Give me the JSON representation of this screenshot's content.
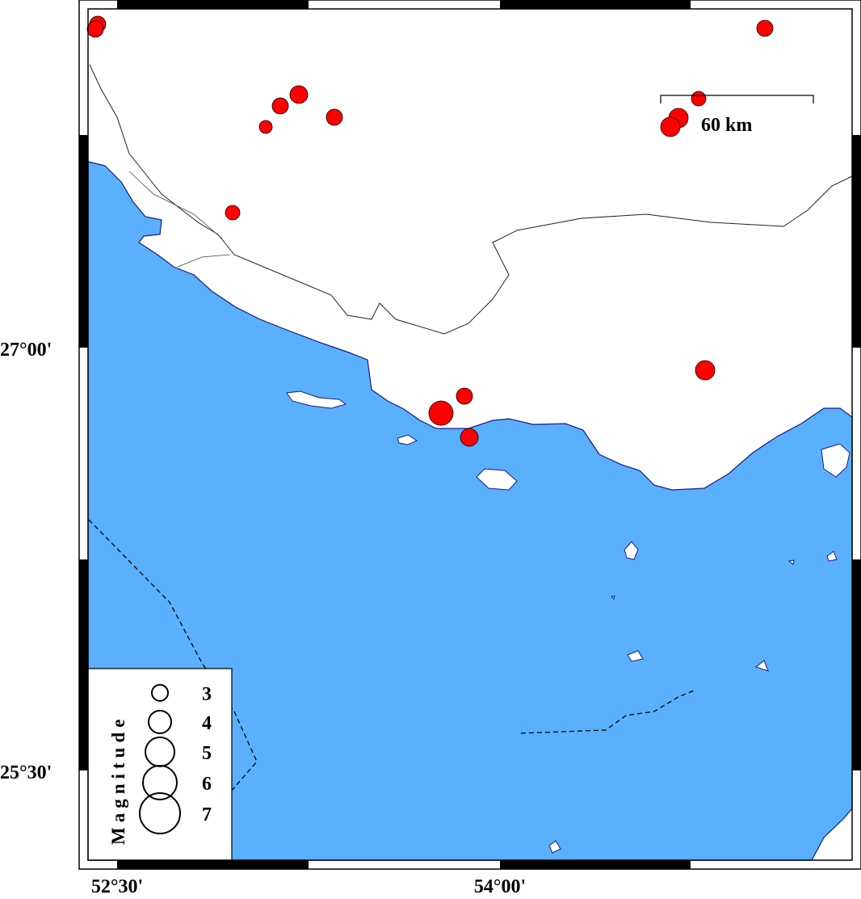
{
  "map": {
    "colors": {
      "sea": "#5ab0fc",
      "land": "#ffffff",
      "event": "#ff0000",
      "coast": "#1a1a80"
    },
    "axes": {
      "lon_labels": [
        "52°30'",
        "54°00'"
      ],
      "lat_labels": [
        "27°00'",
        "25°30'"
      ]
    },
    "scale_bar": {
      "label": "60 km"
    },
    "legend": {
      "title": "Magnitude",
      "entries": [
        {
          "label": "3",
          "mag": 3
        },
        {
          "label": "4",
          "mag": 4
        },
        {
          "label": "5",
          "mag": 5
        },
        {
          "label": "6",
          "mag": 6
        },
        {
          "label": "7",
          "mag": 7
        }
      ]
    }
  }
}
